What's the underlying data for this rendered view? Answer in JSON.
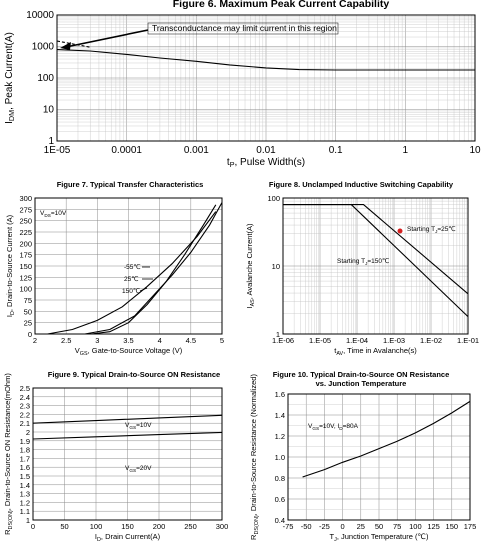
{
  "chart_data": [
    {
      "id": "fig6",
      "type": "line",
      "title": "Figure 6. Maximum Peak Current Capability",
      "xlabel": "t_P, Pulse Width(s)",
      "ylabel": "I_DM, Peak Current(A)",
      "xscale": "log",
      "yscale": "log",
      "xlim": [
        1e-05,
        10
      ],
      "ylim": [
        1,
        10000
      ],
      "x_ticks": [
        "1E-05",
        "0.0001",
        "0.001",
        "0.01",
        "0.1",
        "1",
        "10"
      ],
      "y_ticks": [
        "1",
        "10",
        "100",
        "1000",
        "10000"
      ],
      "grid": true,
      "annotation": "Transconductance  may limit current in this region",
      "series": [
        {
          "x": [
            1e-05,
            3e-05,
            0.0001,
            0.0003,
            0.001,
            0.003,
            0.01,
            0.03,
            0.1,
            1,
            10
          ],
          "y": [
            800,
            720,
            560,
            430,
            340,
            260,
            210,
            185,
            180,
            180,
            180
          ]
        },
        {
          "style": "dashed",
          "x": [
            1e-05,
            3e-05
          ],
          "y": [
            1500,
            950
          ]
        }
      ]
    },
    {
      "id": "fig7",
      "type": "line",
      "title": "Figure 7. Typical Transfer Characteristics",
      "xlabel": "V_GS, Gate-to-Source Voltage (V)",
      "ylabel": "I_D, Drain-to-Source Current (A)",
      "xlim": [
        2,
        5
      ],
      "ylim": [
        0,
        300
      ],
      "x_ticks": [
        "2",
        "2.5",
        "3",
        "3.5",
        "4",
        "4.5",
        "5"
      ],
      "y_ticks": [
        "0",
        "25",
        "50",
        "75",
        "100",
        "125",
        "150",
        "175",
        "200",
        "225",
        "250",
        "275",
        "300"
      ],
      "grid": true,
      "condition_label": "V_DS=10V",
      "series": [
        {
          "name": "-55℃",
          "x": [
            2.9,
            3.2,
            3.5,
            3.8,
            4.1,
            4.4,
            4.7,
            4.9
          ],
          "y": [
            0,
            5,
            25,
            65,
            115,
            175,
            240,
            285
          ]
        },
        {
          "name": "25℃",
          "x": [
            2.8,
            3.2,
            3.6,
            3.9,
            4.2,
            4.5,
            4.8,
            5.0
          ],
          "y": [
            0,
            10,
            40,
            85,
            130,
            180,
            240,
            290
          ]
        },
        {
          "name": "150℃",
          "x": [
            2.2,
            2.6,
            3.0,
            3.4,
            3.8,
            4.2,
            4.6,
            4.9
          ],
          "y": [
            0,
            10,
            30,
            60,
            105,
            155,
            215,
            270
          ]
        }
      ]
    },
    {
      "id": "fig8",
      "type": "line",
      "title": "Figure 8. Unclamped Inductive Switching Capability",
      "xlabel": "t_AV, Time in Avalanche(s)",
      "ylabel": "I_AS, Avalanche Current(A)",
      "xscale": "log",
      "yscale": "log",
      "xlim": [
        1e-06,
        0.1
      ],
      "ylim": [
        1,
        100
      ],
      "x_ticks": [
        "1.E-06",
        "1.E-05",
        "1.E-04",
        "1.E-03",
        "1.E-02",
        "1.E-01"
      ],
      "y_ticks": [
        "1",
        "10",
        "100"
      ],
      "grid": true,
      "series": [
        {
          "name": "Starting T_J=25℃",
          "x": [
            1e-06,
            0.00015,
            0.1
          ],
          "y": [
            80,
            80,
            3.9
          ]
        },
        {
          "name": "Starting T_J=150℃",
          "x": [
            1e-06,
            7e-05,
            0.1
          ],
          "y": [
            80,
            80,
            1.8
          ]
        }
      ]
    },
    {
      "id": "fig9",
      "type": "line",
      "title": "Figure 9. Typical Drain-to-Source ON Resistance",
      "xlabel": "I_D, Drain Current(A)",
      "ylabel": "R_DS(ON), Drain-to-Source  ON Resistance(mOhm)",
      "xlim": [
        0,
        300
      ],
      "ylim": [
        1,
        2.5
      ],
      "x_ticks": [
        "0",
        "50",
        "100",
        "150",
        "200",
        "250",
        "300"
      ],
      "y_ticks": [
        "1",
        "1.1",
        "1.2",
        "1.3",
        "1.4",
        "1.5",
        "1.6",
        "1.7",
        "1.8",
        "1.9",
        "2",
        "2.1",
        "2.2",
        "2.3",
        "2.4",
        "2.5"
      ],
      "grid": true,
      "series": [
        {
          "name": "V_GS=10V",
          "x": [
            0,
            100,
            200,
            300
          ],
          "y": [
            2.1,
            2.13,
            2.16,
            2.19
          ]
        },
        {
          "name": "V_GS=20V",
          "x": [
            0,
            100,
            200,
            300
          ],
          "y": [
            1.92,
            1.945,
            1.97,
            1.995
          ]
        }
      ]
    },
    {
      "id": "fig10",
      "type": "line",
      "title": "Figure 10. Typical Drain-to-Source ON Resistance vs. Junction Temperature",
      "title_lines": [
        "Figure 10. Typical Drain-to-Source ON Resistance",
        "vs. Junction Temperature"
      ],
      "xlabel": "T_J, Junction Temperature (℃)",
      "ylabel": "R_DS(ON), Drain-to-Source Resistance (Normalized)",
      "xlim": [
        -75,
        175
      ],
      "ylim": [
        0.4,
        1.6
      ],
      "x_ticks": [
        "-75",
        "-50",
        "-25",
        "0",
        "25",
        "50",
        "75",
        "100",
        "125",
        "150",
        "175"
      ],
      "y_ticks": [
        "0.4",
        "0.6",
        "0.8",
        "1.0",
        "1.2",
        "1.4",
        "1.6"
      ],
      "grid": true,
      "condition_label": "V_GS=10V, I_D=80A",
      "series": [
        {
          "x": [
            -55,
            -25,
            0,
            25,
            50,
            75,
            100,
            125,
            150,
            175
          ],
          "y": [
            0.81,
            0.88,
            0.95,
            1.01,
            1.08,
            1.15,
            1.23,
            1.32,
            1.42,
            1.53
          ]
        }
      ]
    }
  ]
}
